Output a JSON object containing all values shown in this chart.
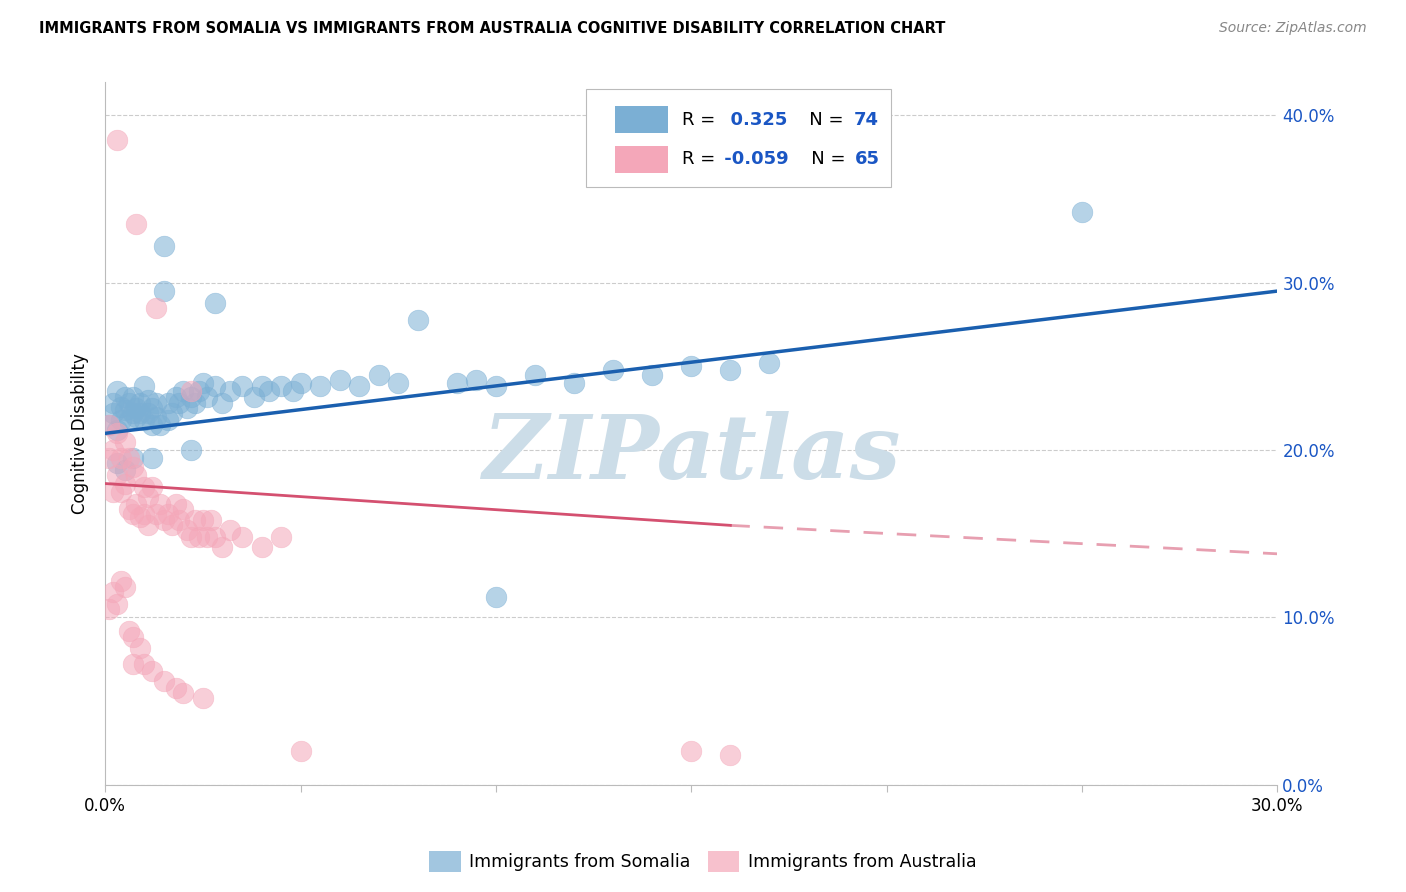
{
  "title": "IMMIGRANTS FROM SOMALIA VS IMMIGRANTS FROM AUSTRALIA COGNITIVE DISABILITY CORRELATION CHART",
  "source": "Source: ZipAtlas.com",
  "ylabel": "Cognitive Disability",
  "x_min": 0.0,
  "x_max": 0.3,
  "y_min": 0.0,
  "y_max": 0.42,
  "x_tick_positions": [
    0.0,
    0.05,
    0.1,
    0.15,
    0.2,
    0.25,
    0.3
  ],
  "x_tick_labels": [
    "0.0%",
    "",
    "",
    "",
    "",
    "",
    "30.0%"
  ],
  "y_ticks": [
    0.0,
    0.1,
    0.2,
    0.3,
    0.4
  ],
  "somalia_color": "#7bafd4",
  "australia_color": "#f4a7b9",
  "somalia_line_color": "#1a5faf",
  "australia_line_color": "#d45070",
  "somalia_R": 0.325,
  "somalia_N": 74,
  "australia_R": -0.059,
  "australia_N": 65,
  "legend_R_color": "#1a56c4",
  "grid_color": "#cccccc",
  "tick_color_right": "#1a56c4",
  "watermark": "ZIPatlas",
  "watermark_color": "#ccdde8",
  "somalia_scatter": [
    [
      0.001,
      0.215
    ],
    [
      0.002,
      0.222
    ],
    [
      0.002,
      0.228
    ],
    [
      0.003,
      0.212
    ],
    [
      0.003,
      0.235
    ],
    [
      0.004,
      0.218
    ],
    [
      0.004,
      0.226
    ],
    [
      0.005,
      0.232
    ],
    [
      0.005,
      0.224
    ],
    [
      0.006,
      0.218
    ],
    [
      0.006,
      0.228
    ],
    [
      0.007,
      0.222
    ],
    [
      0.007,
      0.232
    ],
    [
      0.008,
      0.225
    ],
    [
      0.008,
      0.22
    ],
    [
      0.009,
      0.222
    ],
    [
      0.009,
      0.228
    ],
    [
      0.01,
      0.218
    ],
    [
      0.01,
      0.238
    ],
    [
      0.011,
      0.222
    ],
    [
      0.011,
      0.23
    ],
    [
      0.012,
      0.225
    ],
    [
      0.012,
      0.215
    ],
    [
      0.013,
      0.228
    ],
    [
      0.013,
      0.22
    ],
    [
      0.014,
      0.215
    ],
    [
      0.015,
      0.295
    ],
    [
      0.016,
      0.218
    ],
    [
      0.016,
      0.228
    ],
    [
      0.017,
      0.222
    ],
    [
      0.018,
      0.232
    ],
    [
      0.019,
      0.228
    ],
    [
      0.02,
      0.235
    ],
    [
      0.021,
      0.225
    ],
    [
      0.022,
      0.232
    ],
    [
      0.023,
      0.228
    ],
    [
      0.024,
      0.235
    ],
    [
      0.025,
      0.24
    ],
    [
      0.026,
      0.232
    ],
    [
      0.028,
      0.238
    ],
    [
      0.03,
      0.228
    ],
    [
      0.032,
      0.235
    ],
    [
      0.035,
      0.238
    ],
    [
      0.038,
      0.232
    ],
    [
      0.04,
      0.238
    ],
    [
      0.042,
      0.235
    ],
    [
      0.045,
      0.238
    ],
    [
      0.048,
      0.235
    ],
    [
      0.05,
      0.24
    ],
    [
      0.055,
      0.238
    ],
    [
      0.06,
      0.242
    ],
    [
      0.065,
      0.238
    ],
    [
      0.07,
      0.245
    ],
    [
      0.075,
      0.24
    ],
    [
      0.08,
      0.278
    ],
    [
      0.09,
      0.24
    ],
    [
      0.095,
      0.242
    ],
    [
      0.1,
      0.238
    ],
    [
      0.11,
      0.245
    ],
    [
      0.12,
      0.24
    ],
    [
      0.13,
      0.248
    ],
    [
      0.14,
      0.245
    ],
    [
      0.15,
      0.25
    ],
    [
      0.16,
      0.248
    ],
    [
      0.17,
      0.252
    ],
    [
      0.028,
      0.288
    ],
    [
      0.015,
      0.322
    ],
    [
      0.25,
      0.342
    ],
    [
      0.1,
      0.112
    ],
    [
      0.003,
      0.192
    ],
    [
      0.005,
      0.188
    ],
    [
      0.007,
      0.195
    ],
    [
      0.012,
      0.195
    ],
    [
      0.022,
      0.2
    ]
  ],
  "australia_scatter": [
    [
      0.001,
      0.215
    ],
    [
      0.001,
      0.195
    ],
    [
      0.002,
      0.2
    ],
    [
      0.002,
      0.175
    ],
    [
      0.003,
      0.21
    ],
    [
      0.003,
      0.185
    ],
    [
      0.004,
      0.195
    ],
    [
      0.004,
      0.175
    ],
    [
      0.005,
      0.205
    ],
    [
      0.005,
      0.18
    ],
    [
      0.006,
      0.195
    ],
    [
      0.006,
      0.165
    ],
    [
      0.007,
      0.19
    ],
    [
      0.007,
      0.162
    ],
    [
      0.008,
      0.185
    ],
    [
      0.008,
      0.168
    ],
    [
      0.009,
      0.16
    ],
    [
      0.01,
      0.178
    ],
    [
      0.01,
      0.162
    ],
    [
      0.011,
      0.172
    ],
    [
      0.011,
      0.155
    ],
    [
      0.012,
      0.178
    ],
    [
      0.013,
      0.162
    ],
    [
      0.013,
      0.285
    ],
    [
      0.014,
      0.168
    ],
    [
      0.015,
      0.158
    ],
    [
      0.016,
      0.162
    ],
    [
      0.017,
      0.155
    ],
    [
      0.018,
      0.168
    ],
    [
      0.019,
      0.158
    ],
    [
      0.02,
      0.165
    ],
    [
      0.021,
      0.152
    ],
    [
      0.022,
      0.148
    ],
    [
      0.022,
      0.235
    ],
    [
      0.023,
      0.158
    ],
    [
      0.024,
      0.148
    ],
    [
      0.025,
      0.158
    ],
    [
      0.026,
      0.148
    ],
    [
      0.027,
      0.158
    ],
    [
      0.028,
      0.148
    ],
    [
      0.03,
      0.142
    ],
    [
      0.032,
      0.152
    ],
    [
      0.035,
      0.148
    ],
    [
      0.04,
      0.142
    ],
    [
      0.045,
      0.148
    ],
    [
      0.001,
      0.105
    ],
    [
      0.002,
      0.115
    ],
    [
      0.003,
      0.108
    ],
    [
      0.003,
      0.385
    ],
    [
      0.004,
      0.122
    ],
    [
      0.005,
      0.118
    ],
    [
      0.006,
      0.092
    ],
    [
      0.007,
      0.088
    ],
    [
      0.007,
      0.072
    ],
    [
      0.008,
      0.335
    ],
    [
      0.009,
      0.082
    ],
    [
      0.01,
      0.072
    ],
    [
      0.012,
      0.068
    ],
    [
      0.015,
      0.062
    ],
    [
      0.018,
      0.058
    ],
    [
      0.02,
      0.055
    ],
    [
      0.025,
      0.052
    ],
    [
      0.15,
      0.02
    ],
    [
      0.16,
      0.018
    ],
    [
      0.05,
      0.02
    ]
  ]
}
